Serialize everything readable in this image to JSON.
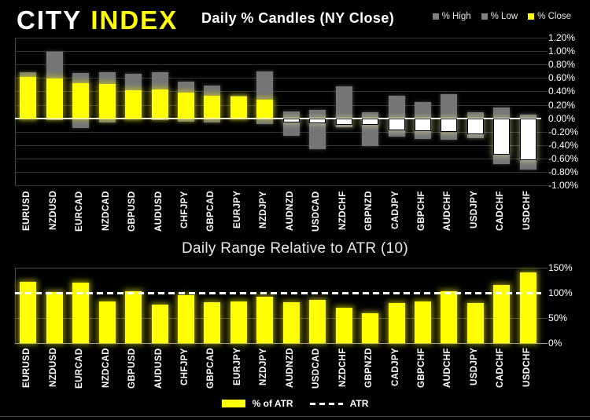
{
  "header": {
    "logo_part1": "CITY",
    "logo_part2": "INDEX"
  },
  "chart_data": [
    {
      "type": "bar",
      "title": "Daily % Candles (NY Close)",
      "categories": [
        "EURUSD",
        "NZDUSD",
        "EURCAD",
        "NZDCAD",
        "GBPUSD",
        "AUDUSD",
        "CHFJPY",
        "GBPCAD",
        "EURJPY",
        "NZDJPY",
        "AUDNZD",
        "USDCAD",
        "NZDCHF",
        "GBPNZD",
        "CADJPY",
        "GBPCHF",
        "AUDCHF",
        "USDJPY",
        "CADCHF",
        "USDCHF"
      ],
      "series": [
        {
          "name": "% High",
          "color": "#7f7f7f",
          "values": [
            0.69,
            0.99,
            0.67,
            0.69,
            0.66,
            0.68,
            0.54,
            0.49,
            0.34,
            0.7,
            0.1,
            0.12,
            0.47,
            0.09,
            0.34,
            0.24,
            0.36,
            0.09,
            0.16,
            0.05
          ]
        },
        {
          "name": "% Low",
          "color": "#7f7f7f",
          "values": [
            -0.01,
            -0.03,
            -0.14,
            -0.06,
            -0.01,
            -0.03,
            -0.05,
            -0.06,
            -0.01,
            -0.09,
            -0.26,
            -0.46,
            -0.13,
            -0.41,
            -0.28,
            -0.31,
            -0.32,
            -0.3,
            -0.68,
            -0.77
          ]
        },
        {
          "name": "% Close",
          "color": "#ffff00",
          "values": [
            0.62,
            0.59,
            0.52,
            0.51,
            0.42,
            0.43,
            0.38,
            0.33,
            0.32,
            0.28,
            -0.06,
            -0.07,
            -0.1,
            -0.1,
            -0.18,
            -0.19,
            -0.21,
            -0.24,
            -0.54,
            -0.63
          ]
        }
      ],
      "ylim": [
        -1.0,
        1.2
      ],
      "ytick_step": 0.2,
      "ytick_labels": [
        "1.20%",
        "1.00%",
        "0.80%",
        "0.60%",
        "0.40%",
        "0.20%",
        "0.00%",
        "-0.20%",
        "-0.40%",
        "-0.60%",
        "-0.80%",
        "-1.00%"
      ],
      "legend_position": "top-right",
      "grid": true,
      "units": "percent"
    },
    {
      "type": "bar",
      "title": "Daily Range Relative to ATR (10)",
      "categories": [
        "EURUSD",
        "NZDUSD",
        "EURCAD",
        "NZDCAD",
        "GBPUSD",
        "AUDUSD",
        "CHFJPY",
        "GBPCAD",
        "EURJPY",
        "NZDJPY",
        "AUDNZD",
        "USDCAD",
        "NZDCHF",
        "GBPNZD",
        "CADJPY",
        "GBPCHF",
        "AUDCHF",
        "USDJPY",
        "CADCHF",
        "USDCHF"
      ],
      "series": [
        {
          "name": "% of ATR",
          "color": "#ffff00",
          "values": [
            122,
            102,
            121,
            83,
            103,
            76,
            96,
            81,
            83,
            93,
            81,
            86,
            70,
            59,
            80,
            83,
            103,
            80,
            115,
            140
          ]
        }
      ],
      "reference_line": {
        "name": "ATR",
        "value": 100,
        "style": "dashed",
        "color": "#ffffff"
      },
      "ylim": [
        0,
        150
      ],
      "ytick_step": 50,
      "ytick_labels": [
        "150%",
        "100%",
        "50%",
        "0%"
      ],
      "legend_position": "bottom-center",
      "grid": true,
      "units": "percent_of_atr"
    }
  ],
  "colors": {
    "background": "#000000",
    "logo_accent": "#ffff00",
    "close_up": "#ffff00",
    "close_down_fill": "#ffffff",
    "high_low": "#7f7f7f",
    "gridline": "#353535",
    "zero_line": "#f2f2f2",
    "text": "#ffffff"
  }
}
